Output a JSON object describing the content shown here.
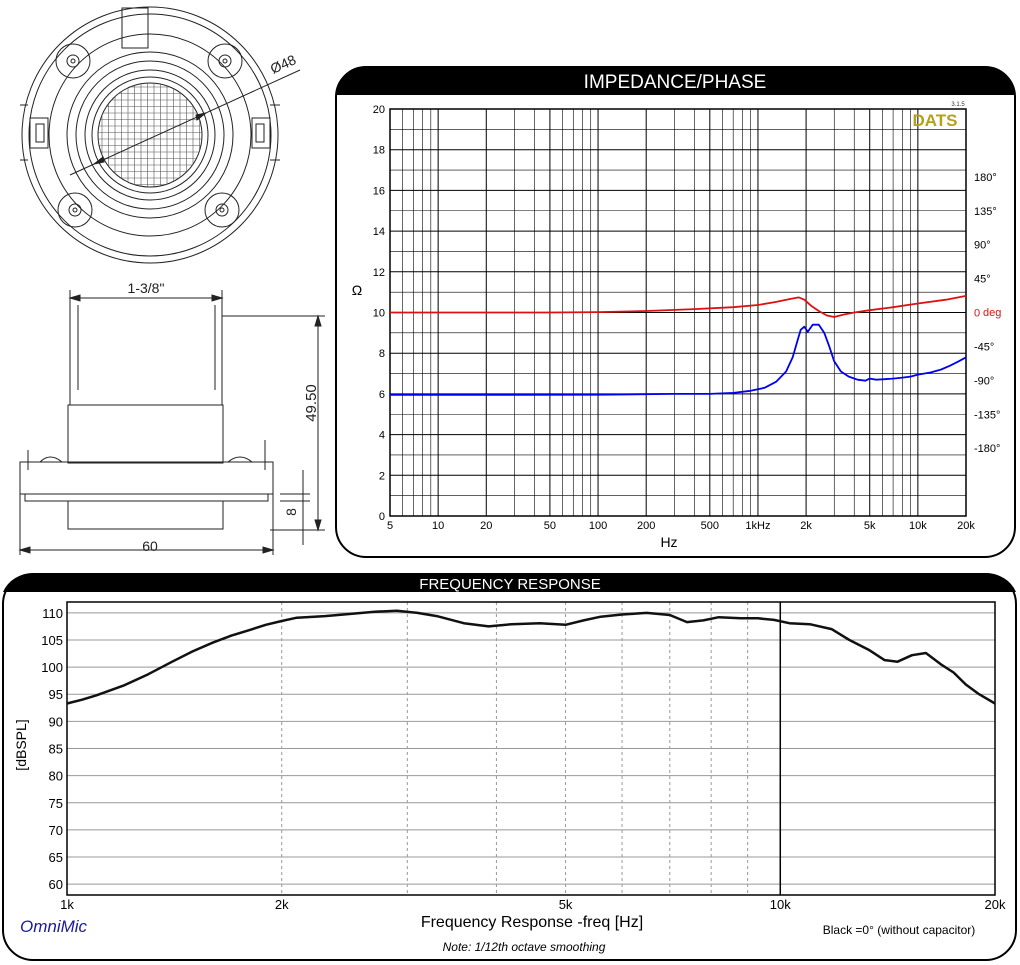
{
  "drawing": {
    "diameter_label": "Ø48",
    "width_label": "1-3/8\"",
    "height_label": "49.50",
    "flange_label": "8",
    "base_label": "60"
  },
  "chart_data": [
    {
      "type": "line",
      "title": "IMPEDANCE/PHASE",
      "brand": "DATS",
      "version": "3.1.5",
      "xlabel": "Hz",
      "ylabel": "Ω",
      "xscale": "log",
      "xlim": [
        5,
        20000
      ],
      "ylim": [
        0,
        20
      ],
      "y2lim": [
        -270,
        270
      ],
      "y2_unit": "deg",
      "grid": true,
      "x_ticks": [
        5,
        10,
        20,
        50,
        100,
        200,
        500,
        1000,
        2000,
        5000,
        10000,
        20000
      ],
      "x_tick_labels": [
        "5",
        "10",
        "20",
        "50",
        "100",
        "200",
        "500",
        "1kHz",
        "2k",
        "5k",
        "10k",
        "20k"
      ],
      "y_ticks": [
        0,
        2,
        4,
        6,
        8,
        10,
        12,
        14,
        16,
        18,
        20
      ],
      "y2_ticks": [
        180,
        135,
        90,
        45,
        0,
        -45,
        -90,
        -135,
        -180
      ],
      "y2_tick_labels": [
        "180°",
        "135°",
        "90°",
        "45°",
        "0",
        "-45°",
        "-90°",
        "-135°",
        "-180°"
      ],
      "series": [
        {
          "color": "#0000ee",
          "axis": "left",
          "points": [
            [
              5,
              5.95
            ],
            [
              20,
              5.95
            ],
            [
              100,
              5.96
            ],
            [
              300,
              6.0
            ],
            [
              500,
              6.0
            ],
            [
              700,
              6.05
            ],
            [
              900,
              6.15
            ],
            [
              1100,
              6.3
            ],
            [
              1300,
              6.6
            ],
            [
              1500,
              7.1
            ],
            [
              1650,
              7.8
            ],
            [
              1750,
              8.5
            ],
            [
              1850,
              9.15
            ],
            [
              1950,
              9.3
            ],
            [
              2050,
              9.05
            ],
            [
              2200,
              9.4
            ],
            [
              2400,
              9.4
            ],
            [
              2600,
              9.0
            ],
            [
              2800,
              8.3
            ],
            [
              3000,
              7.6
            ],
            [
              3300,
              7.1
            ],
            [
              3700,
              6.85
            ],
            [
              4200,
              6.7
            ],
            [
              4700,
              6.65
            ],
            [
              5000,
              6.75
            ],
            [
              5500,
              6.7
            ],
            [
              6200,
              6.72
            ],
            [
              7000,
              6.75
            ],
            [
              8000,
              6.8
            ],
            [
              9000,
              6.85
            ],
            [
              10000,
              6.95
            ],
            [
              12000,
              7.05
            ],
            [
              14000,
              7.2
            ],
            [
              16000,
              7.4
            ],
            [
              18000,
              7.6
            ],
            [
              20000,
              7.8
            ]
          ]
        },
        {
          "color": "#dd1111",
          "axis": "right",
          "points": [
            [
              5,
              0
            ],
            [
              50,
              0
            ],
            [
              100,
              0.5
            ],
            [
              200,
              2
            ],
            [
              400,
              4.5
            ],
            [
              700,
              7
            ],
            [
              1000,
              10
            ],
            [
              1300,
              14
            ],
            [
              1600,
              18
            ],
            [
              1800,
              20
            ],
            [
              1950,
              17
            ],
            [
              2150,
              9
            ],
            [
              2400,
              2
            ],
            [
              2700,
              -4
            ],
            [
              3000,
              -6
            ],
            [
              3400,
              -3
            ],
            [
              4000,
              0
            ],
            [
              5000,
              3
            ],
            [
              7000,
              7
            ],
            [
              10000,
              12
            ],
            [
              15000,
              17
            ],
            [
              20000,
              22
            ]
          ]
        }
      ]
    },
    {
      "type": "line",
      "title": "FREQUENCY RESPONSE",
      "xlabel": "Frequency Response -freq [Hz]",
      "ylabel": "[dBSPL]",
      "xscale": "log",
      "xlim": [
        1000,
        20000
      ],
      "ylim": [
        58,
        112
      ],
      "grid": true,
      "x_ticks": [
        1000,
        2000,
        5000,
        10000,
        20000
      ],
      "x_tick_labels": [
        "1k",
        "2k",
        "5k",
        "10k",
        "20k"
      ],
      "y_ticks": [
        60,
        65,
        70,
        75,
        80,
        85,
        90,
        95,
        100,
        105,
        110
      ],
      "brand": "OmniMic",
      "note": "Note: 1/12th octave smoothing",
      "legend_note": "Black =0° (without capacitor)",
      "series": [
        {
          "color": "#111111",
          "points": [
            [
              1000,
              93.3
            ],
            [
              1050,
              94.0
            ],
            [
              1100,
              94.8
            ],
            [
              1200,
              96.6
            ],
            [
              1300,
              98.7
            ],
            [
              1400,
              100.9
            ],
            [
              1500,
              102.9
            ],
            [
              1600,
              104.5
            ],
            [
              1700,
              105.8
            ],
            [
              1800,
              106.8
            ],
            [
              1900,
              107.8
            ],
            [
              2000,
              108.5
            ],
            [
              2100,
              109.1
            ],
            [
              2300,
              109.4
            ],
            [
              2500,
              109.8
            ],
            [
              2700,
              110.2
            ],
            [
              2900,
              110.4
            ],
            [
              3100,
              110.0
            ],
            [
              3300,
              109.4
            ],
            [
              3600,
              108.1
            ],
            [
              3900,
              107.5
            ],
            [
              4200,
              107.9
            ],
            [
              4600,
              108.1
            ],
            [
              5000,
              107.8
            ],
            [
              5300,
              108.6
            ],
            [
              5600,
              109.3
            ],
            [
              6000,
              109.7
            ],
            [
              6500,
              110.0
            ],
            [
              7000,
              109.6
            ],
            [
              7400,
              108.3
            ],
            [
              7800,
              108.6
            ],
            [
              8200,
              109.2
            ],
            [
              8800,
              109.0
            ],
            [
              9300,
              109.0
            ],
            [
              9800,
              108.7
            ],
            [
              10300,
              108.1
            ],
            [
              11000,
              107.9
            ],
            [
              11800,
              107.0
            ],
            [
              12500,
              105.0
            ],
            [
              13300,
              103.2
            ],
            [
              14000,
              101.3
            ],
            [
              14600,
              101.0
            ],
            [
              15300,
              102.2
            ],
            [
              16000,
              102.6
            ],
            [
              16800,
              100.5
            ],
            [
              17500,
              99.0
            ],
            [
              18200,
              96.8
            ],
            [
              19000,
              95.0
            ],
            [
              20000,
              93.3
            ]
          ]
        }
      ]
    }
  ]
}
